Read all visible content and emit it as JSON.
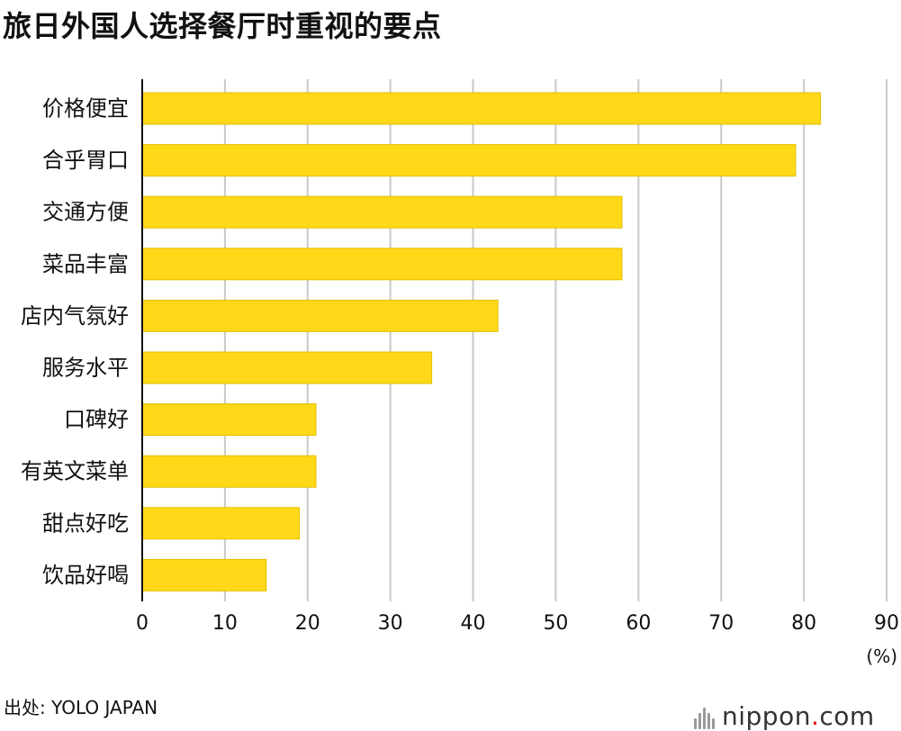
{
  "chart_data": {
    "type": "bar",
    "orientation": "horizontal",
    "title": "旅日外国人选择餐厅时重视的要点",
    "unit": "(%)",
    "categories": [
      "价格便宜",
      "合乎胃口",
      "交通方便",
      "菜品丰富",
      "店内气氛好",
      "服务水平",
      "口碑好",
      "有英文菜单",
      "甜点好吃",
      "饮品好喝"
    ],
    "values": [
      82,
      79,
      58,
      58,
      43,
      35,
      21,
      21,
      19,
      15
    ],
    "xlim": [
      0,
      90
    ],
    "ticks": [
      0,
      10,
      20,
      30,
      40,
      50,
      60,
      70,
      80,
      90
    ],
    "grid": true,
    "legend": "none"
  },
  "source": "出处: YOLO JAPAN",
  "brand": {
    "name": "nippon",
    "dot": ".",
    "suffix": "com"
  },
  "colors": {
    "bar": "#FFD817",
    "bar_shadow": "#E2C000",
    "grid": "#C9C9C9",
    "axis": "#111111",
    "brand_dot": "#E60012"
  }
}
